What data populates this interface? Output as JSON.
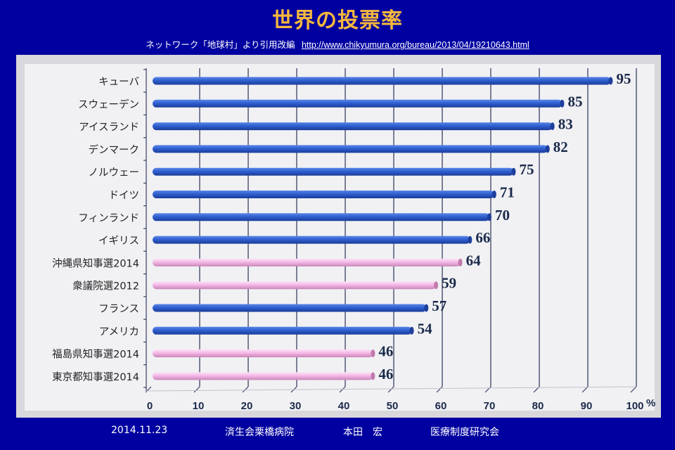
{
  "header": {
    "title": "世界の投票率",
    "source_text": "ネットワーク「地球村」より引用改編",
    "source_url": "http://www.chikyumura.org/bureau/2013/04/19210643.html"
  },
  "footer": {
    "date": "2014.11.23",
    "hospital": "済生会栗橋病院",
    "author": "本田　宏",
    "organization": "医療制度研究会"
  },
  "colors": {
    "background": "#0000a0",
    "title": "#f5b83c",
    "country_bar": "#2f5fd0",
    "japan_bar": "#f4b8e6",
    "value_label": "#1a2a4a"
  },
  "chart_data": {
    "type": "bar",
    "orientation": "horizontal",
    "title": "世界の投票率",
    "xlabel": "",
    "ylabel": "",
    "unit_label": "%",
    "xlim": [
      0,
      100
    ],
    "x_ticks": [
      "0",
      "10",
      "20",
      "30",
      "40",
      "50",
      "60",
      "70",
      "80",
      "90",
      "100"
    ],
    "grid": true,
    "categories": [
      "キューバ",
      "スウェーデン",
      "アイスランド",
      "デンマーク",
      "ノルウェー",
      "ドイツ",
      "フィンランド",
      "イギリス",
      "沖縄県知事選2014",
      "衆議院選2012",
      "フランス",
      "アメリカ",
      "福島県知事選2014",
      "東京都知事選2014"
    ],
    "values": [
      95,
      85,
      83,
      82,
      75,
      71,
      70,
      66,
      64,
      59,
      57,
      54,
      46,
      46
    ],
    "value_labels": [
      "95",
      "85",
      "83",
      "82",
      "75",
      "71",
      "70",
      "66",
      "64",
      "59",
      "57",
      "54",
      "46",
      "46"
    ],
    "bar_group": [
      "country",
      "country",
      "country",
      "country",
      "country",
      "country",
      "country",
      "country",
      "japan",
      "japan",
      "country",
      "country",
      "japan",
      "japan"
    ]
  }
}
